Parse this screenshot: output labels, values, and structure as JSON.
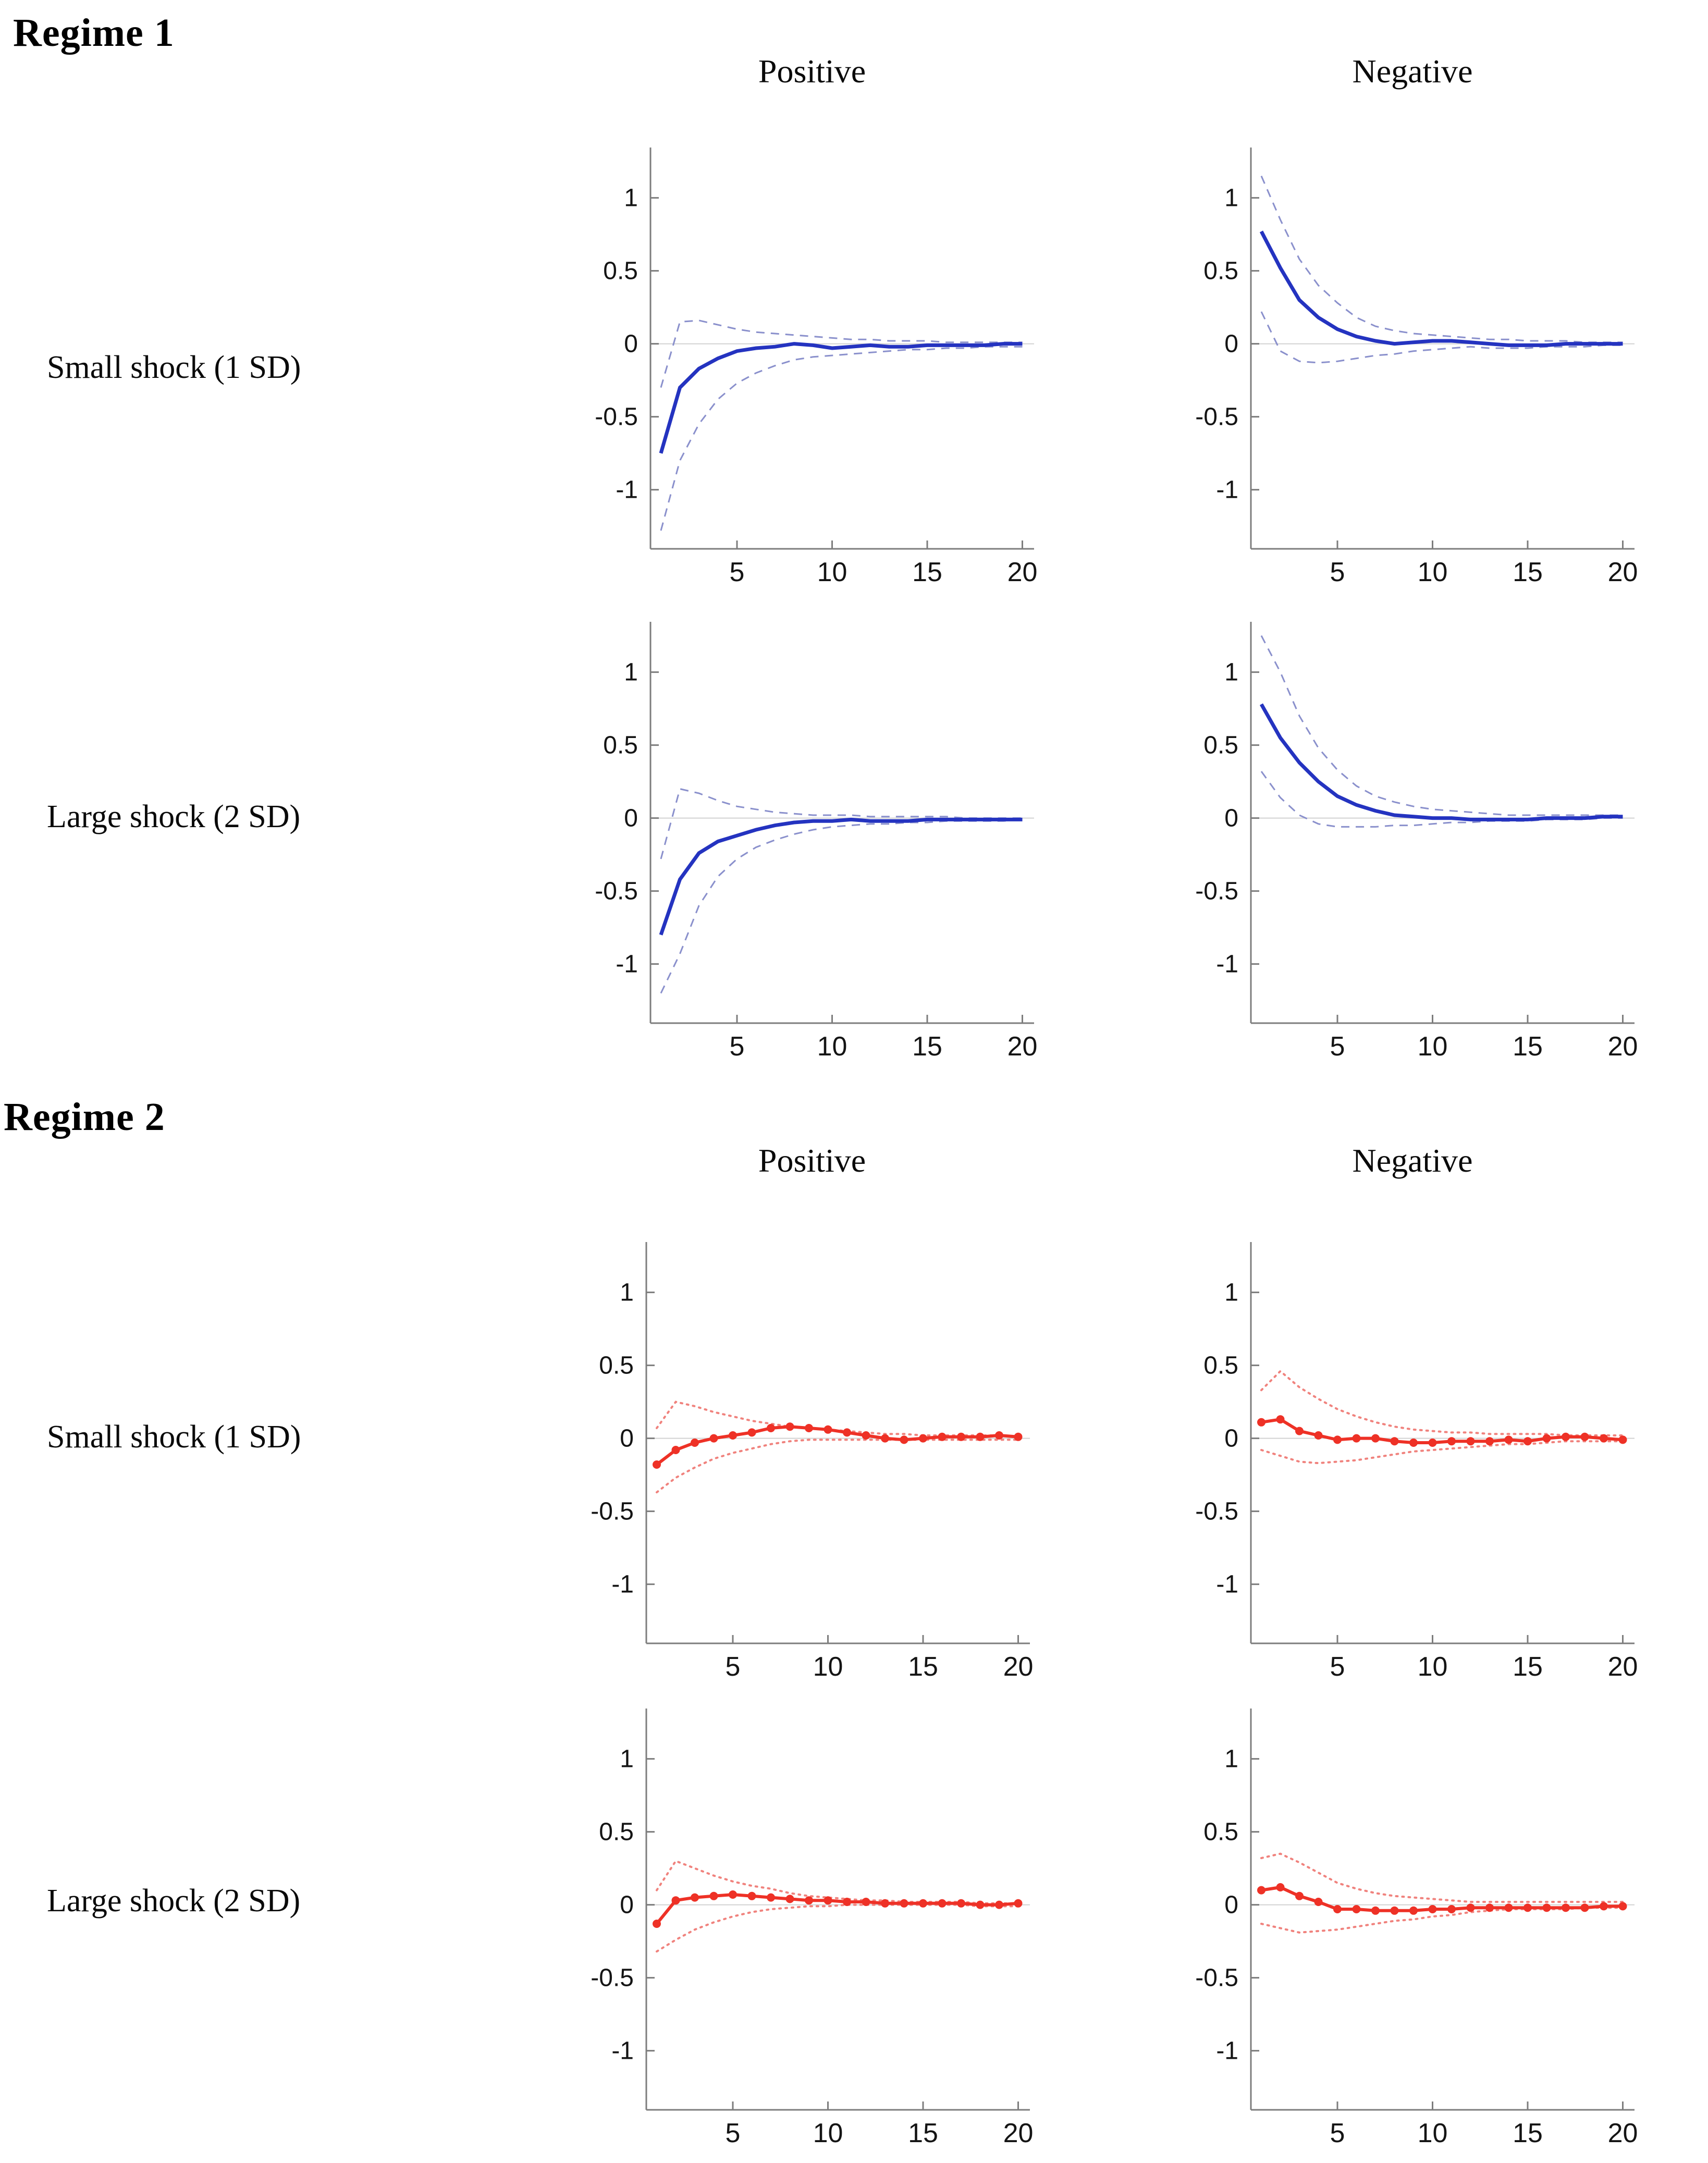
{
  "titles": {
    "regime1": "Regime 1",
    "regime2": "Regime 2"
  },
  "column_headers": {
    "positive": "Positive",
    "negative": "Negative"
  },
  "row_labels": {
    "small": "Small shock (1 SD)",
    "large": "Large shock (2 SD)"
  },
  "colors": {
    "blue_main": "#2433c0",
    "blue_band": "#8a90cc",
    "red_main": "#ee3126",
    "red_band": "#f0827d",
    "zero_line": "#d2d2d2",
    "axis": "#7d7d7d",
    "tick_text": "#141414"
  },
  "chart_data": [
    {
      "id": "r1-positive-small",
      "type": "line",
      "regime": "Regime 1",
      "column": "Positive",
      "row": "Small shock (1 SD)",
      "markers": false,
      "xlim": [
        0.4,
        21.6
      ],
      "ylim": [
        -1.405,
        1.345
      ],
      "xticks": [
        5,
        10,
        15,
        20
      ],
      "yticks": [
        1,
        0.5,
        0,
        -0.5,
        -1
      ],
      "grid": "zero-line-only",
      "legend": "none",
      "x": [
        1,
        2,
        3,
        4,
        5,
        6,
        7,
        8,
        9,
        10,
        11,
        12,
        13,
        14,
        15,
        16,
        17,
        18,
        19,
        20
      ],
      "series": [
        {
          "name": "impulse-response",
          "style": "solid",
          "color": "#2433c0",
          "values": [
            -0.75,
            -0.3,
            -0.17,
            -0.1,
            -0.05,
            -0.03,
            -0.02,
            0.0,
            -0.01,
            -0.03,
            -0.02,
            -0.01,
            -0.02,
            -0.02,
            -0.01,
            -0.01,
            -0.01,
            -0.01,
            0.0,
            0.0
          ]
        },
        {
          "name": "upper-band",
          "style": "dashed",
          "color": "#8a90cc",
          "values": [
            -0.3,
            0.15,
            0.16,
            0.13,
            0.1,
            0.08,
            0.07,
            0.06,
            0.05,
            0.04,
            0.03,
            0.03,
            0.02,
            0.02,
            0.02,
            0.01,
            0.01,
            0.01,
            0.01,
            0.01
          ]
        },
        {
          "name": "lower-band",
          "style": "dashed",
          "color": "#8a90cc",
          "values": [
            -1.28,
            -0.8,
            -0.55,
            -0.38,
            -0.27,
            -0.2,
            -0.15,
            -0.11,
            -0.09,
            -0.08,
            -0.07,
            -0.06,
            -0.05,
            -0.04,
            -0.04,
            -0.03,
            -0.03,
            -0.02,
            -0.02,
            -0.02
          ]
        }
      ]
    },
    {
      "id": "r1-negative-small",
      "type": "line",
      "regime": "Regime 1",
      "column": "Negative",
      "row": "Small shock (1 SD)",
      "markers": false,
      "xlim": [
        0.4,
        21.6
      ],
      "ylim": [
        -1.405,
        1.345
      ],
      "xticks": [
        5,
        10,
        15,
        20
      ],
      "yticks": [
        1,
        0.5,
        0,
        -0.5,
        -1
      ],
      "grid": "zero-line-only",
      "legend": "none",
      "x": [
        1,
        2,
        3,
        4,
        5,
        6,
        7,
        8,
        9,
        10,
        11,
        12,
        13,
        14,
        15,
        16,
        17,
        18,
        19,
        20
      ],
      "series": [
        {
          "name": "impulse-response",
          "style": "solid",
          "color": "#2433c0",
          "values": [
            0.77,
            0.52,
            0.3,
            0.18,
            0.1,
            0.05,
            0.02,
            0.0,
            0.01,
            0.02,
            0.02,
            0.01,
            0.0,
            -0.01,
            -0.01,
            -0.01,
            0.0,
            0.0,
            0.0,
            0.0
          ]
        },
        {
          "name": "upper-band",
          "style": "dashed",
          "color": "#8a90cc",
          "values": [
            1.15,
            0.85,
            0.58,
            0.4,
            0.28,
            0.18,
            0.12,
            0.09,
            0.07,
            0.06,
            0.05,
            0.04,
            0.03,
            0.03,
            0.02,
            0.02,
            0.02,
            0.01,
            0.01,
            0.01
          ]
        },
        {
          "name": "lower-band",
          "style": "dashed",
          "color": "#8a90cc",
          "values": [
            0.22,
            -0.05,
            -0.12,
            -0.13,
            -0.12,
            -0.1,
            -0.08,
            -0.07,
            -0.05,
            -0.04,
            -0.03,
            -0.02,
            -0.03,
            -0.03,
            -0.03,
            -0.02,
            -0.02,
            -0.02,
            -0.01,
            -0.01
          ]
        }
      ]
    },
    {
      "id": "r1-positive-large",
      "type": "line",
      "regime": "Regime 1",
      "column": "Positive",
      "row": "Large shock (2 SD)",
      "markers": false,
      "xlim": [
        0.4,
        21.6
      ],
      "ylim": [
        -1.405,
        1.345
      ],
      "xticks": [
        5,
        10,
        15,
        20
      ],
      "yticks": [
        1,
        0.5,
        0,
        -0.5,
        -1
      ],
      "grid": "zero-line-only",
      "legend": "none",
      "x": [
        1,
        2,
        3,
        4,
        5,
        6,
        7,
        8,
        9,
        10,
        11,
        12,
        13,
        14,
        15,
        16,
        17,
        18,
        19,
        20
      ],
      "series": [
        {
          "name": "impulse-response",
          "style": "solid",
          "color": "#2433c0",
          "values": [
            -0.8,
            -0.42,
            -0.24,
            -0.16,
            -0.12,
            -0.08,
            -0.05,
            -0.03,
            -0.02,
            -0.02,
            -0.01,
            -0.02,
            -0.02,
            -0.02,
            -0.01,
            -0.01,
            -0.01,
            -0.01,
            -0.01,
            -0.01
          ]
        },
        {
          "name": "upper-band",
          "style": "dashed",
          "color": "#8a90cc",
          "values": [
            -0.28,
            0.2,
            0.17,
            0.12,
            0.08,
            0.06,
            0.04,
            0.03,
            0.02,
            0.02,
            0.02,
            0.01,
            0.01,
            0.01,
            0.01,
            0.01,
            0.0,
            0.0,
            0.0,
            0.0
          ]
        },
        {
          "name": "lower-band",
          "style": "dashed",
          "color": "#8a90cc",
          "values": [
            -1.2,
            -0.93,
            -0.6,
            -0.4,
            -0.28,
            -0.2,
            -0.15,
            -0.11,
            -0.08,
            -0.06,
            -0.05,
            -0.04,
            -0.04,
            -0.03,
            -0.03,
            -0.02,
            -0.02,
            -0.02,
            -0.02,
            -0.01
          ]
        }
      ]
    },
    {
      "id": "r1-negative-large",
      "type": "line",
      "regime": "Regime 1",
      "column": "Negative",
      "row": "Large shock (2 SD)",
      "markers": false,
      "xlim": [
        0.4,
        21.6
      ],
      "ylim": [
        -1.405,
        1.345
      ],
      "xticks": [
        5,
        10,
        15,
        20
      ],
      "yticks": [
        1,
        0.5,
        0,
        -0.5,
        -1
      ],
      "grid": "zero-line-only",
      "legend": "none",
      "x": [
        1,
        2,
        3,
        4,
        5,
        6,
        7,
        8,
        9,
        10,
        11,
        12,
        13,
        14,
        15,
        16,
        17,
        18,
        19,
        20
      ],
      "series": [
        {
          "name": "impulse-response",
          "style": "solid",
          "color": "#2433c0",
          "values": [
            0.78,
            0.55,
            0.38,
            0.25,
            0.15,
            0.09,
            0.05,
            0.02,
            0.01,
            0.0,
            0.0,
            -0.01,
            -0.01,
            -0.01,
            -0.01,
            0.0,
            0.0,
            0.0,
            0.01,
            0.01
          ]
        },
        {
          "name": "upper-band",
          "style": "dashed",
          "color": "#8a90cc",
          "values": [
            1.25,
            1.0,
            0.7,
            0.48,
            0.33,
            0.22,
            0.15,
            0.11,
            0.08,
            0.06,
            0.05,
            0.04,
            0.03,
            0.02,
            0.02,
            0.02,
            0.02,
            0.02,
            0.02,
            0.02
          ]
        },
        {
          "name": "lower-band",
          "style": "dashed",
          "color": "#8a90cc",
          "values": [
            0.32,
            0.14,
            0.02,
            -0.04,
            -0.06,
            -0.06,
            -0.06,
            -0.05,
            -0.05,
            -0.04,
            -0.03,
            -0.03,
            -0.02,
            -0.02,
            -0.02,
            -0.01,
            -0.01,
            -0.01,
            0.0,
            0.0
          ]
        }
      ]
    },
    {
      "id": "r2-positive-small",
      "type": "line",
      "regime": "Regime 2",
      "column": "Positive",
      "row": "Small shock (1 SD)",
      "markers": true,
      "xlim": [
        0.4,
        21.6
      ],
      "ylim": [
        -1.405,
        1.345
      ],
      "xticks": [
        5,
        10,
        15,
        20
      ],
      "yticks": [
        1,
        0.5,
        0,
        -0.5,
        -1
      ],
      "grid": "zero-line-only",
      "legend": "none",
      "x": [
        1,
        2,
        3,
        4,
        5,
        6,
        7,
        8,
        9,
        10,
        11,
        12,
        13,
        14,
        15,
        16,
        17,
        18,
        19,
        20
      ],
      "series": [
        {
          "name": "impulse-response",
          "style": "solid",
          "color": "#ee3126",
          "values": [
            -0.18,
            -0.08,
            -0.03,
            0.0,
            0.02,
            0.04,
            0.07,
            0.08,
            0.07,
            0.06,
            0.04,
            0.02,
            0.0,
            -0.01,
            0.0,
            0.01,
            0.01,
            0.01,
            0.02,
            0.01
          ]
        },
        {
          "name": "upper-band",
          "style": "dotted",
          "color": "#f0827d",
          "values": [
            0.07,
            0.25,
            0.22,
            0.18,
            0.15,
            0.12,
            0.1,
            0.08,
            0.07,
            0.06,
            0.05,
            0.04,
            0.03,
            0.03,
            0.02,
            0.02,
            0.02,
            0.02,
            0.02,
            0.01
          ]
        },
        {
          "name": "lower-band",
          "style": "dotted",
          "color": "#f0827d",
          "values": [
            -0.37,
            -0.27,
            -0.2,
            -0.14,
            -0.1,
            -0.07,
            -0.04,
            -0.02,
            -0.01,
            -0.01,
            -0.01,
            -0.01,
            -0.01,
            -0.01,
            -0.01,
            -0.01,
            -0.01,
            -0.01,
            -0.01,
            -0.01
          ]
        }
      ]
    },
    {
      "id": "r2-negative-small",
      "type": "line",
      "regime": "Regime 2",
      "column": "Negative",
      "row": "Small shock (1 SD)",
      "markers": true,
      "xlim": [
        0.4,
        21.6
      ],
      "ylim": [
        -1.405,
        1.345
      ],
      "xticks": [
        5,
        10,
        15,
        20
      ],
      "yticks": [
        1,
        0.5,
        0,
        -0.5,
        -1
      ],
      "grid": "zero-line-only",
      "legend": "none",
      "x": [
        1,
        2,
        3,
        4,
        5,
        6,
        7,
        8,
        9,
        10,
        11,
        12,
        13,
        14,
        15,
        16,
        17,
        18,
        19,
        20
      ],
      "series": [
        {
          "name": "impulse-response",
          "style": "solid",
          "color": "#ee3126",
          "values": [
            0.11,
            0.13,
            0.05,
            0.02,
            -0.01,
            0.0,
            0.0,
            -0.02,
            -0.03,
            -0.03,
            -0.02,
            -0.02,
            -0.02,
            -0.01,
            -0.02,
            0.0,
            0.01,
            0.01,
            0.0,
            -0.01
          ]
        },
        {
          "name": "upper-band",
          "style": "dotted",
          "color": "#f0827d",
          "values": [
            0.33,
            0.46,
            0.35,
            0.27,
            0.2,
            0.15,
            0.11,
            0.08,
            0.06,
            0.05,
            0.04,
            0.04,
            0.03,
            0.03,
            0.03,
            0.03,
            0.02,
            0.02,
            0.02,
            0.02
          ]
        },
        {
          "name": "lower-band",
          "style": "dotted",
          "color": "#f0827d",
          "values": [
            -0.08,
            -0.12,
            -0.16,
            -0.17,
            -0.16,
            -0.15,
            -0.13,
            -0.11,
            -0.09,
            -0.08,
            -0.07,
            -0.06,
            -0.05,
            -0.04,
            -0.04,
            -0.03,
            -0.02,
            -0.02,
            -0.02,
            -0.02
          ]
        }
      ]
    },
    {
      "id": "r2-positive-large",
      "type": "line",
      "regime": "Regime 2",
      "column": "Positive",
      "row": "Large shock (2 SD)",
      "markers": true,
      "xlim": [
        0.4,
        21.6
      ],
      "ylim": [
        -1.405,
        1.345
      ],
      "xticks": [
        5,
        10,
        15,
        20
      ],
      "yticks": [
        1,
        0.5,
        0,
        -0.5,
        -1
      ],
      "grid": "zero-line-only",
      "legend": "none",
      "x": [
        1,
        2,
        3,
        4,
        5,
        6,
        7,
        8,
        9,
        10,
        11,
        12,
        13,
        14,
        15,
        16,
        17,
        18,
        19,
        20
      ],
      "series": [
        {
          "name": "impulse-response",
          "style": "solid",
          "color": "#ee3126",
          "values": [
            -0.13,
            0.03,
            0.05,
            0.06,
            0.07,
            0.06,
            0.05,
            0.04,
            0.03,
            0.03,
            0.02,
            0.02,
            0.01,
            0.01,
            0.01,
            0.01,
            0.01,
            0.0,
            0.0,
            0.01
          ]
        },
        {
          "name": "upper-band",
          "style": "dotted",
          "color": "#f0827d",
          "values": [
            0.1,
            0.3,
            0.25,
            0.2,
            0.16,
            0.13,
            0.11,
            0.08,
            0.06,
            0.05,
            0.04,
            0.03,
            0.03,
            0.02,
            0.02,
            0.02,
            0.02,
            0.01,
            0.01,
            0.01
          ]
        },
        {
          "name": "lower-band",
          "style": "dotted",
          "color": "#f0827d",
          "values": [
            -0.32,
            -0.24,
            -0.17,
            -0.12,
            -0.08,
            -0.05,
            -0.03,
            -0.02,
            -0.01,
            -0.01,
            0.0,
            0.0,
            0.0,
            0.0,
            0.0,
            0.0,
            0.0,
            -0.01,
            -0.01,
            -0.01
          ]
        }
      ]
    },
    {
      "id": "r2-negative-large",
      "type": "line",
      "regime": "Regime 2",
      "column": "Negative",
      "row": "Large shock (2 SD)",
      "markers": true,
      "xlim": [
        0.4,
        21.6
      ],
      "ylim": [
        -1.405,
        1.345
      ],
      "xticks": [
        5,
        10,
        15,
        20
      ],
      "yticks": [
        1,
        0.5,
        0,
        -0.5,
        -1
      ],
      "grid": "zero-line-only",
      "legend": "none",
      "x": [
        1,
        2,
        3,
        4,
        5,
        6,
        7,
        8,
        9,
        10,
        11,
        12,
        13,
        14,
        15,
        16,
        17,
        18,
        19,
        20
      ],
      "series": [
        {
          "name": "impulse-response",
          "style": "solid",
          "color": "#ee3126",
          "values": [
            0.1,
            0.12,
            0.06,
            0.02,
            -0.03,
            -0.03,
            -0.04,
            -0.04,
            -0.04,
            -0.03,
            -0.03,
            -0.02,
            -0.02,
            -0.02,
            -0.02,
            -0.02,
            -0.02,
            -0.02,
            -0.01,
            -0.01
          ]
        },
        {
          "name": "upper-band",
          "style": "dotted",
          "color": "#f0827d",
          "values": [
            0.32,
            0.35,
            0.29,
            0.22,
            0.15,
            0.11,
            0.08,
            0.06,
            0.05,
            0.04,
            0.03,
            0.02,
            0.02,
            0.02,
            0.02,
            0.02,
            0.02,
            0.02,
            0.02,
            0.02
          ]
        },
        {
          "name": "lower-band",
          "style": "dotted",
          "color": "#f0827d",
          "values": [
            -0.13,
            -0.16,
            -0.19,
            -0.18,
            -0.17,
            -0.15,
            -0.13,
            -0.11,
            -0.1,
            -0.08,
            -0.07,
            -0.05,
            -0.04,
            -0.03,
            -0.03,
            -0.03,
            -0.03,
            -0.02,
            -0.02,
            -0.02
          ]
        }
      ]
    }
  ]
}
